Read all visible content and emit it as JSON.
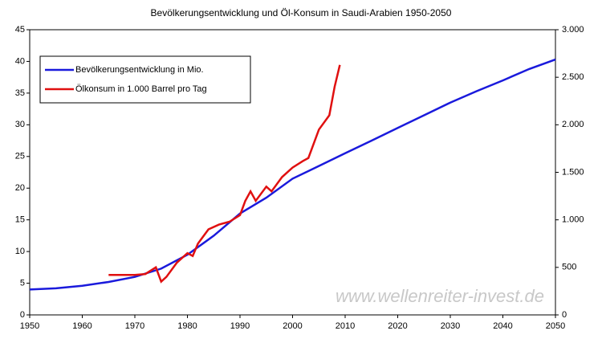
{
  "chart_data": {
    "type": "line",
    "title": "Bevölkerungsentwicklung und Öl-Konsum in Saudi-Arabien 1950-2050",
    "watermark": "www.wellenreiter-invest.de",
    "xlim": [
      1950,
      2050
    ],
    "xticks": [
      1950,
      1960,
      1970,
      1980,
      1990,
      2000,
      2010,
      2020,
      2030,
      2040,
      2050
    ],
    "ylim": [
      0,
      45
    ],
    "yticks": [
      0,
      5,
      10,
      15,
      20,
      25,
      30,
      35,
      40,
      45
    ],
    "y2lim": [
      0,
      3000
    ],
    "y2ticks": [
      0,
      500,
      {
        "value": 1000,
        "label": "1.000"
      },
      {
        "value": 1500,
        "label": "1.500"
      },
      {
        "value": 2000,
        "label": "2.000"
      },
      {
        "value": 2500,
        "label": "2.500"
      },
      {
        "value": 3000,
        "label": "3.000"
      }
    ],
    "legend": "upper left",
    "series": [
      {
        "name": "Bevölkerungsentwicklung in Mio.",
        "color": "#1a1adc",
        "x": [
          1950,
          1955,
          1960,
          1965,
          1970,
          1975,
          1980,
          1985,
          1990,
          1995,
          2000,
          2005,
          2010,
          2015,
          2020,
          2025,
          2030,
          2035,
          2040,
          2045,
          2050
        ],
        "values": [
          4.0,
          4.2,
          4.6,
          5.2,
          6.0,
          7.3,
          9.5,
          12.5,
          16.0,
          18.5,
          21.5,
          23.5,
          25.5,
          27.5,
          29.5,
          31.5,
          33.5,
          35.3,
          37.0,
          38.8,
          40.3
        ]
      },
      {
        "name": "Ölkonsum in 1.000 Barrel pro Tag",
        "color": "#e01010",
        "axis": "y2",
        "x": [
          1965,
          1970,
          1972,
          1974,
          1975,
          1976,
          1978,
          1980,
          1981,
          1982,
          1984,
          1986,
          1988,
          1990,
          1991,
          1992,
          1993,
          1995,
          1996,
          1998,
          2000,
          2002,
          2003,
          2005,
          2007,
          2008,
          2009
        ],
        "values": [
          420,
          420,
          430,
          500,
          350,
          400,
          550,
          650,
          620,
          750,
          900,
          950,
          980,
          1050,
          1200,
          1300,
          1200,
          1350,
          1300,
          1450,
          1550,
          1620,
          1650,
          1950,
          2100,
          2400,
          2630
        ]
      }
    ]
  }
}
